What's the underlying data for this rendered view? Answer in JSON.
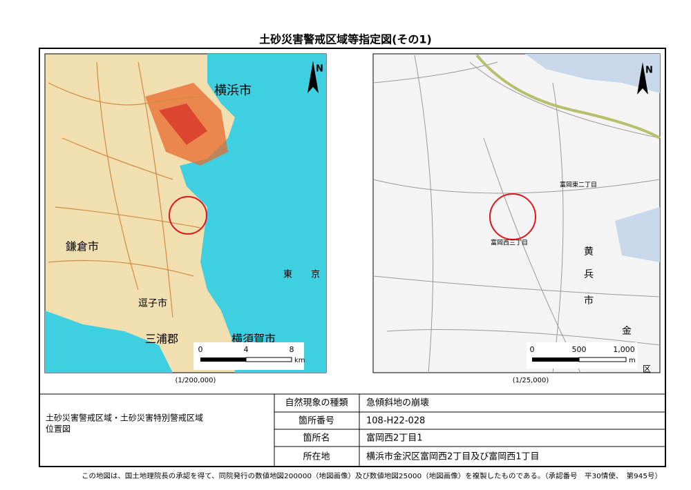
{
  "title": "土砂災害警戒区域等指定図(その1)",
  "left_map": {
    "north": "N",
    "places": [
      "横浜市",
      "鎌倉市",
      "逗子市",
      "三浦郡",
      "横須賀市",
      "東",
      "京"
    ],
    "scale_ticks": [
      "0",
      "4",
      "8"
    ],
    "scale_unit": "km",
    "scale": "(1/200,000)"
  },
  "right_map": {
    "north": "N",
    "places": [
      "富岡西三丁目",
      "富岡東二丁目",
      "黄",
      "兵",
      "市",
      "金",
      "区"
    ],
    "scale_ticks": [
      "0",
      "500",
      "1,000"
    ],
    "scale_unit": "m",
    "scale": "(1/25,000)"
  },
  "info": {
    "area_label": [
      "土砂災害警戒区域・土砂災害特別警戒区域",
      "位置図"
    ],
    "rows": [
      [
        "自然現象の種類",
        "急傾斜地の崩壊"
      ],
      [
        "箇所番号",
        "108-H22-028"
      ],
      [
        "箇所名",
        "富岡西2丁目1"
      ],
      [
        "所在地",
        "横浜市金沢区富岡西2丁目及び富岡西1丁目"
      ]
    ]
  },
  "footer": "この地図は、国土地理院長の承認を得て、同院発行の数値地図200000（地図画像）及び数値地図25000（地図画像）を複製したものである。（承認番号　平30情使、　第945号）"
}
